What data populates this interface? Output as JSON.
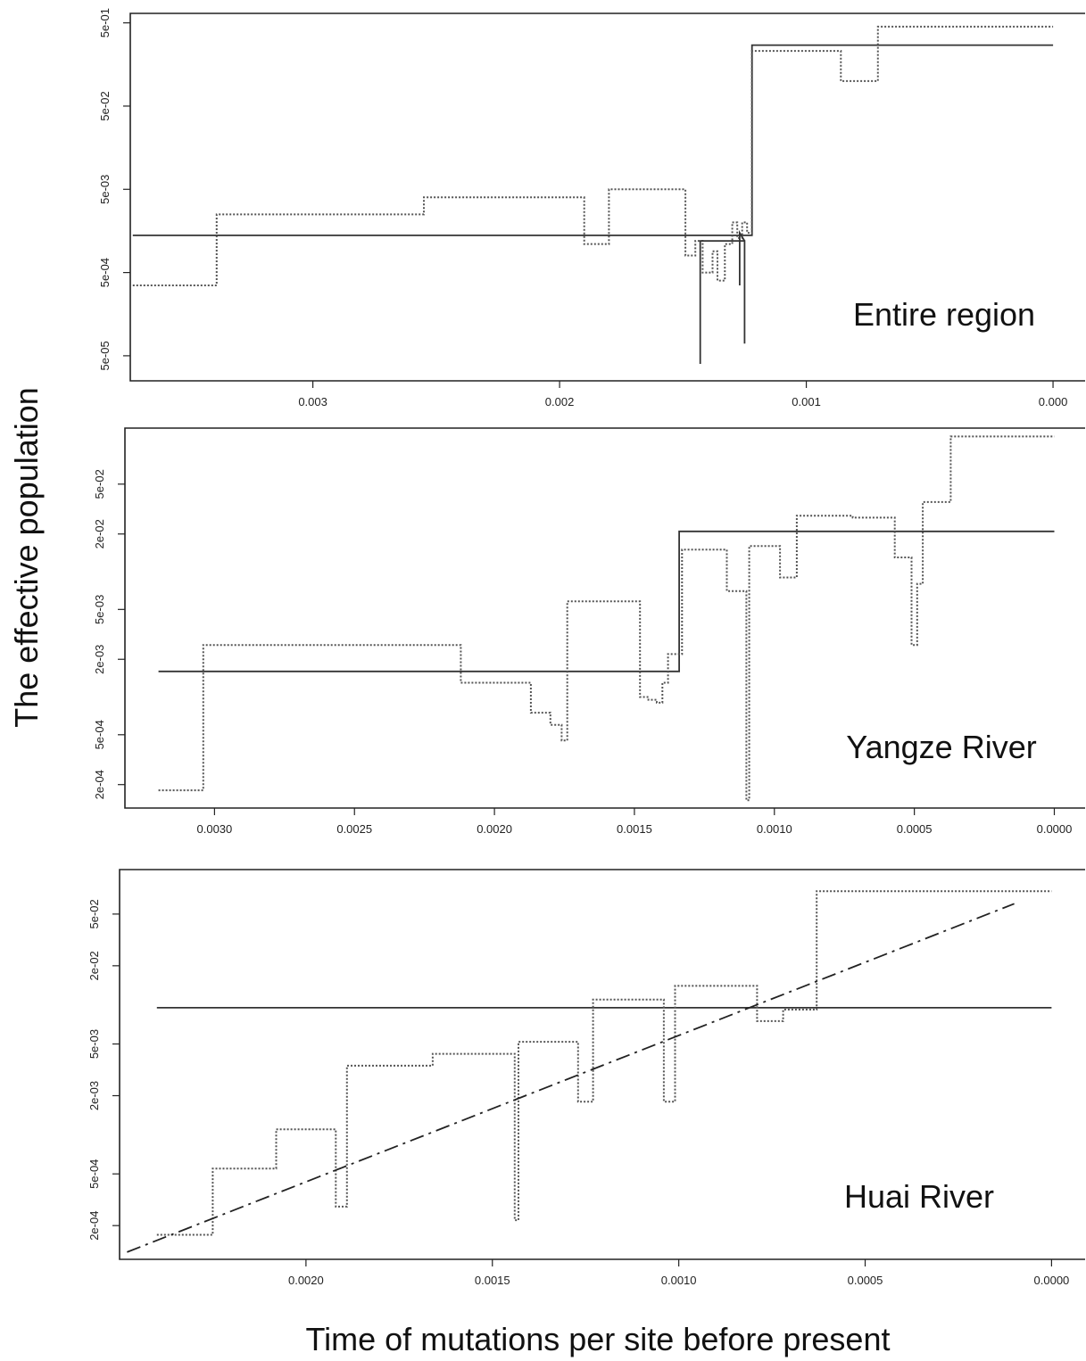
{
  "figure": {
    "ylabel": "The effective population",
    "xlabel": "Time of mutations per site before present"
  },
  "chart_data": [
    {
      "type": "line",
      "panel_label": "Entire region",
      "y_scale": "log",
      "x_reversed": true,
      "xlim": [
        0.00374,
        -0.00013
      ],
      "ylim": [
        2.5e-05,
        0.65
      ],
      "x_ticks": [
        0.003,
        0.002,
        0.001,
        0.0
      ],
      "x_tick_labels": [
        "0.003",
        "0.002",
        "0.001",
        "0.000"
      ],
      "y_ticks": [
        5e-05,
        0.0005,
        0.005,
        0.05,
        0.5
      ],
      "y_tick_labels": [
        "5e-05",
        "5e-04",
        "5e-03",
        "5e-02",
        "5e-01"
      ],
      "series": [
        {
          "style": "solid",
          "x": [
            0.00373,
            0.00122,
            0.00122,
            0.0
          ],
          "y": [
            0.0014,
            0.0014,
            0.27,
            0.27
          ]
        },
        {
          "style": "dotted",
          "x": [
            0.00373,
            0.00339,
            0.00339,
            0.00255,
            0.00255,
            0.0019,
            0.0019,
            0.0018,
            0.0018,
            0.00149,
            0.00149,
            0.00145,
            0.00145,
            0.00142,
            0.00142,
            0.00138,
            0.00138,
            0.00136,
            0.00136,
            0.00133,
            0.00133,
            0.0013,
            0.0013,
            0.00128,
            0.00128,
            0.00126,
            0.00126,
            0.00124,
            0.00124,
            0.00122,
            0.00122,
            0.00086,
            0.00086,
            0.00071,
            0.00071,
            0.0
          ],
          "y": [
            0.00035,
            0.00035,
            0.0025,
            0.0025,
            0.004,
            0.004,
            0.0011,
            0.0011,
            0.005,
            0.005,
            0.0008,
            0.0008,
            0.0012,
            0.0012,
            0.0005,
            0.0005,
            0.0009,
            0.0009,
            0.0004,
            0.0004,
            0.0011,
            0.0011,
            0.002,
            0.002,
            0.0013,
            0.0013,
            0.002,
            0.002,
            0.0015,
            0.0015,
            0.23,
            0.23,
            0.1,
            0.1,
            0.45,
            0.45
          ]
        },
        {
          "style": "solid",
          "x": [
            0.00143,
            0.00143,
            0.00143,
            0.00125,
            0.00125,
            0.00125,
            0.00127,
            0.00127,
            0.00127
          ],
          "y": [
            0.0012,
            4e-05,
            0.0012,
            0.0012,
            7e-05,
            0.0012,
            0.0015,
            0.00035,
            0.0015
          ]
        }
      ]
    },
    {
      "type": "line",
      "panel_label": "Yangze River",
      "y_scale": "log",
      "x_reversed": true,
      "xlim": [
        0.00332,
        -0.00011
      ],
      "ylim": [
        0.00013,
        0.14
      ],
      "x_ticks": [
        0.003,
        0.0025,
        0.002,
        0.0015,
        0.001,
        0.0005,
        0.0
      ],
      "x_tick_labels": [
        "0.0030",
        "0.0025",
        "0.0020",
        "0.0015",
        "0.0010",
        "0.0005",
        "0.0000"
      ],
      "y_ticks": [
        0.0002,
        0.0005,
        0.002,
        0.005,
        0.02,
        0.05
      ],
      "y_tick_labels": [
        "2e-04",
        "5e-04",
        "2e-03",
        "5e-03",
        "2e-02",
        "5e-02"
      ],
      "series": [
        {
          "style": "solid",
          "x": [
            0.0032,
            0.00134,
            0.00134,
            0.0
          ],
          "y": [
            0.0016,
            0.0016,
            0.021,
            0.021
          ]
        },
        {
          "style": "dotted",
          "x": [
            0.0032,
            0.00304,
            0.00304,
            0.00212,
            0.00212,
            0.00187,
            0.00187,
            0.0018,
            0.0018,
            0.00176,
            0.00176,
            0.00174,
            0.00174,
            0.00148,
            0.00148,
            0.00145,
            0.00145,
            0.00142,
            0.00142,
            0.0014,
            0.0014,
            0.00138,
            0.00138,
            0.00133,
            0.00133,
            0.00117,
            0.00117,
            0.0011,
            0.0011,
            0.00109,
            0.00109,
            0.00098,
            0.00098,
            0.00092,
            0.00092,
            0.00072,
            0.00072,
            0.00057,
            0.00057,
            0.00051,
            0.00051,
            0.00049,
            0.00049,
            0.00047,
            0.00047,
            0.00037,
            0.00037,
            0.00033,
            0.00033,
            0.0
          ],
          "y": [
            0.00018,
            0.00018,
            0.0026,
            0.0026,
            0.0013,
            0.0013,
            0.00075,
            0.00075,
            0.0006,
            0.0006,
            0.00045,
            0.00045,
            0.0058,
            0.0058,
            0.001,
            0.001,
            0.00095,
            0.00095,
            0.0009,
            0.0009,
            0.0013,
            0.0013,
            0.0022,
            0.0022,
            0.015,
            0.015,
            0.007,
            0.007,
            0.00015,
            0.00015,
            0.016,
            0.016,
            0.009,
            0.009,
            0.028,
            0.028,
            0.027,
            0.027,
            0.013,
            0.013,
            0.0026,
            0.0026,
            0.008,
            0.008,
            0.036,
            0.036,
            0.12,
            0.12,
            0.12,
            0.12
          ]
        }
      ]
    },
    {
      "type": "line",
      "panel_label": "Huai River",
      "y_scale": "log",
      "x_reversed": true,
      "xlim": [
        0.0025,
        -9e-05
      ],
      "ylim": [
        0.00011,
        0.11
      ],
      "x_ticks": [
        0.002,
        0.0015,
        0.001,
        0.0005,
        0.0
      ],
      "x_tick_labels": [
        "0.0020",
        "0.0015",
        "0.0010",
        "0.0005",
        "0.0000"
      ],
      "y_ticks": [
        0.0002,
        0.0005,
        0.002,
        0.005,
        0.02,
        0.05
      ],
      "y_tick_labels": [
        "2e-04",
        "5e-04",
        "2e-03",
        "5e-03",
        "2e-02",
        "5e-02"
      ],
      "series": [
        {
          "style": "solid",
          "x": [
            0.0024,
            0.0
          ],
          "y": [
            0.0095,
            0.0095
          ]
        },
        {
          "style": "dotted",
          "x": [
            0.0024,
            0.00225,
            0.00225,
            0.00208,
            0.00208,
            0.00192,
            0.00192,
            0.00189,
            0.00189,
            0.00166,
            0.00166,
            0.00144,
            0.00144,
            0.00143,
            0.00143,
            0.00127,
            0.00127,
            0.00123,
            0.00123,
            0.00104,
            0.00104,
            0.00101,
            0.00101,
            0.00079,
            0.00079,
            0.00072,
            0.00072,
            0.00063,
            0.00063,
            0.0
          ],
          "y": [
            0.00017,
            0.00017,
            0.00055,
            0.00055,
            0.0011,
            0.0011,
            0.00028,
            0.00028,
            0.0034,
            0.0034,
            0.0042,
            0.0042,
            0.00022,
            0.00022,
            0.0052,
            0.0052,
            0.0018,
            0.0018,
            0.011,
            0.011,
            0.0018,
            0.0018,
            0.014,
            0.014,
            0.0075,
            0.0075,
            0.0092,
            0.0092,
            0.075,
            0.075
          ]
        },
        {
          "style": "dashdot",
          "x": [
            0.00248,
            0.0001
          ],
          "y": [
            0.000125,
            0.06
          ]
        }
      ]
    }
  ]
}
